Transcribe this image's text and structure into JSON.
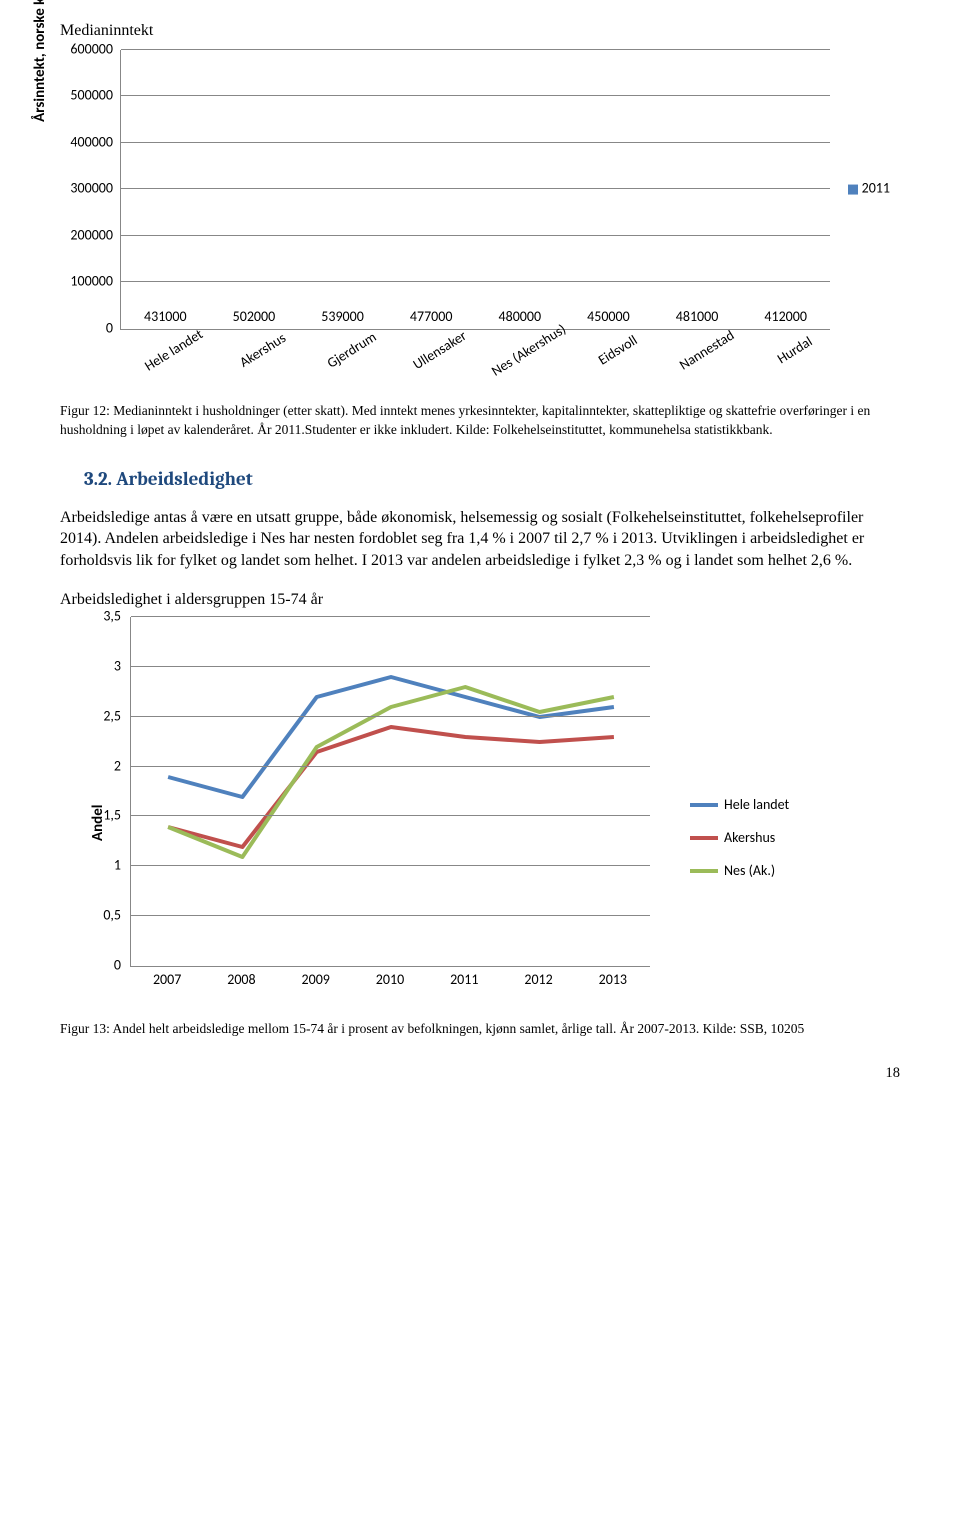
{
  "bar_chart": {
    "title": "Medianinntekt",
    "y_axis_label": "Årsinntekt, norske kroner",
    "ymax": 600000,
    "ytick_step": 100000,
    "yticks": [
      "0",
      "100000",
      "200000",
      "300000",
      "400000",
      "500000",
      "600000"
    ],
    "categories": [
      "Hele landet",
      "Akershus",
      "Gjerdrum",
      "Ullensaker",
      "Nes (Akershus)",
      "Eidsvoll",
      "Nannestad",
      "Hurdal"
    ],
    "values": [
      431000,
      502000,
      539000,
      477000,
      480000,
      450000,
      481000,
      412000
    ],
    "bar_color": "#4f81bd",
    "bar_width_pct": 56,
    "grid_color": "#878787",
    "legend_label": "2011",
    "legend_color": "#4f81bd"
  },
  "caption1": "Figur 12: Medianinntekt i husholdninger (etter skatt). Med inntekt menes yrkesinntekter, kapitalinntekter, skattepliktige og skattefrie overføringer i en husholdning i løpet av kalenderåret. År 2011.Studenter er ikke inkludert. Kilde: Folkehelseinstituttet, kommunehelsa statistikkbank.",
  "section": {
    "number": "3.2.",
    "title": "Arbeidsledighet"
  },
  "body": "Arbeidsledige antas å være en utsatt gruppe, både økonomisk, helsemessig og sosialt (Folkehelseinstituttet, folkehelseprofiler 2014). Andelen arbeidsledige i Nes har nesten fordoblet seg fra 1,4 % i 2007 til 2,7 % i 2013. Utviklingen i arbeidsledighet er forholdsvis lik for fylket og landet som helhet. I 2013 var andelen arbeidsledige i fylket 2,3 % og i landet som helhet 2,6 %.",
  "line_chart": {
    "title": "Arbeidsledighet i aldersgruppen 15-74 år",
    "y_axis_label": "Andel",
    "ymax": 3.5,
    "ytick_step": 0.5,
    "yticks": [
      "0",
      "0,5",
      "1",
      "1,5",
      "2",
      "2,5",
      "3",
      "3,5"
    ],
    "x_categories": [
      "2007",
      "2008",
      "2009",
      "2010",
      "2011",
      "2012",
      "2013"
    ],
    "series": [
      {
        "name": "Hele landet",
        "color": "#4f81bd",
        "values": [
          1.9,
          1.7,
          2.7,
          2.9,
          2.7,
          2.5,
          2.6
        ],
        "stroke_width": 4
      },
      {
        "name": "Akershus",
        "color": "#c0504d",
        "values": [
          1.4,
          1.2,
          2.15,
          2.4,
          2.3,
          2.25,
          2.3
        ],
        "stroke_width": 4
      },
      {
        "name": "Nes (Ak.)",
        "color": "#9bbb59",
        "values": [
          1.4,
          1.1,
          2.2,
          2.6,
          2.8,
          2.55,
          2.7
        ],
        "stroke_width": 4
      }
    ],
    "grid_color": "#878787"
  },
  "caption2": "Figur 13: Andel helt arbeidsledige mellom 15-74 år i prosent av befolkningen, kjønn samlet, årlige tall. År 2007-2013. Kilde: SSB, 10205",
  "page_number": "18"
}
